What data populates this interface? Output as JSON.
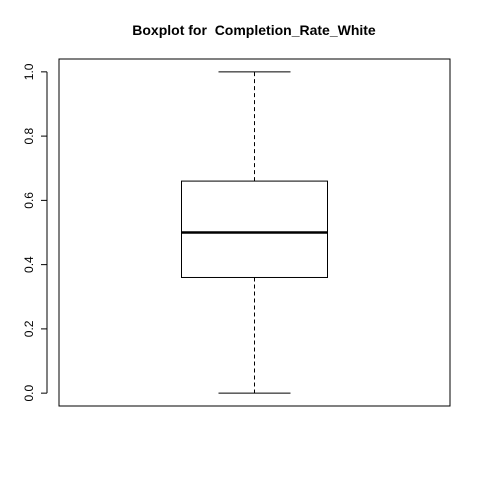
{
  "chart_data": {
    "type": "boxplot",
    "title": "Boxplot for  Completion_Rate_White",
    "xlabel": "",
    "ylabel": "",
    "ylim": [
      -0.04,
      1.04
    ],
    "yticks": [
      0.0,
      0.2,
      0.4,
      0.6,
      0.8,
      1.0
    ],
    "ytick_labels": [
      "0.0",
      "0.2",
      "0.4",
      "0.6",
      "0.8",
      "1.0"
    ],
    "grid": false,
    "series": [
      {
        "min": 0.0,
        "q1": 0.36,
        "median": 0.5,
        "q3": 0.66,
        "max": 1.0
      }
    ]
  }
}
